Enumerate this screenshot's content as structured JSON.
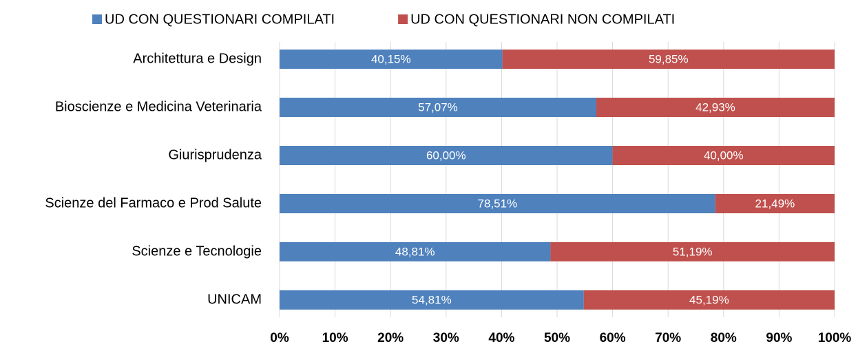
{
  "chart_data": {
    "type": "bar",
    "orientation": "horizontal",
    "stacked": true,
    "categories": [
      "Architettura e Design",
      "Bioscienze e Medicina Veterinaria",
      "Giurisprudenza",
      "Scienze del Farmaco e Prod Salute",
      "Scienze e Tecnologie",
      "UNICAM"
    ],
    "series": [
      {
        "name": "UD CON QUESTIONARI COMPILATI",
        "color": "#4f81bd",
        "values": [
          40.15,
          57.07,
          60.0,
          78.51,
          48.81,
          54.81
        ],
        "value_labels": [
          "40,15%",
          "57,07%",
          "60,00%",
          "78,51%",
          "48,81%",
          "54,81%"
        ]
      },
      {
        "name": "UD CON QUESTIONARI NON COMPILATI",
        "color": "#c0504d",
        "values": [
          59.85,
          42.93,
          40.0,
          21.49,
          51.19,
          45.19
        ],
        "value_labels": [
          "59,85%",
          "42,93%",
          "40,00%",
          "21,49%",
          "51,19%",
          "45,19%"
        ]
      }
    ],
    "xlim": [
      0,
      100
    ],
    "xticks": [
      {
        "value": 0,
        "label": "0%"
      },
      {
        "value": 10,
        "label": "10%"
      },
      {
        "value": 20,
        "label": "20%"
      },
      {
        "value": 30,
        "label": "30%"
      },
      {
        "value": 40,
        "label": "40%"
      },
      {
        "value": 50,
        "label": "50%"
      },
      {
        "value": 60,
        "label": "60%"
      },
      {
        "value": 70,
        "label": "70%"
      },
      {
        "value": 80,
        "label": "80%"
      },
      {
        "value": 90,
        "label": "90%"
      },
      {
        "value": 100,
        "label": "100%"
      }
    ],
    "grid": true,
    "legend": "top"
  }
}
